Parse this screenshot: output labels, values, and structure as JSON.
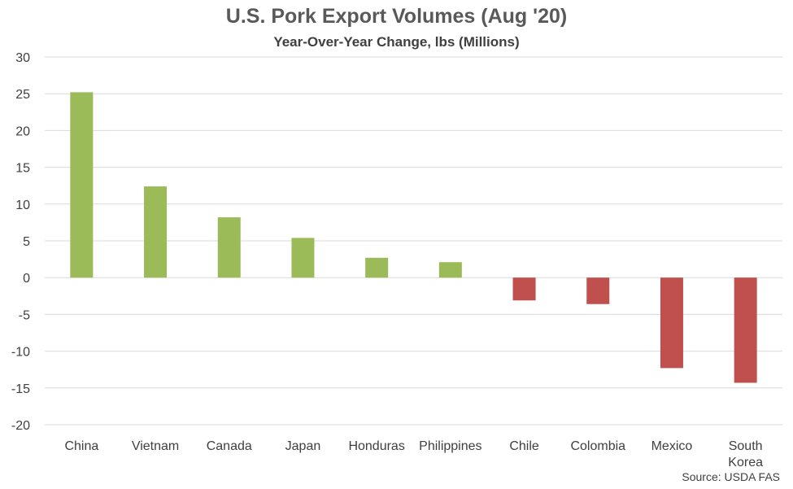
{
  "chart_data": {
    "type": "bar",
    "title": "U.S. Pork Export Volumes (Aug '20)",
    "subtitle": "Year-Over-Year Change, lbs (Millions)",
    "source": "Source: USDA FAS",
    "categories": [
      "China",
      "Vietnam",
      "Canada",
      "Japan",
      "Honduras",
      "Philippines",
      "Chile",
      "Colombia",
      "Mexico",
      "South Korea"
    ],
    "values": [
      25.2,
      12.4,
      8.2,
      5.4,
      2.7,
      2.1,
      -3.1,
      -3.6,
      -12.3,
      -14.3
    ],
    "ylim": [
      -20,
      30
    ],
    "yticks": [
      30,
      25,
      20,
      15,
      10,
      5,
      0,
      -5,
      -10,
      -15,
      -20
    ],
    "grid": true,
    "legend": "none",
    "colors": {
      "positive": "#9bbb59",
      "negative": "#c0504d",
      "grid": "#d9d9d9",
      "text": "#404040"
    }
  }
}
